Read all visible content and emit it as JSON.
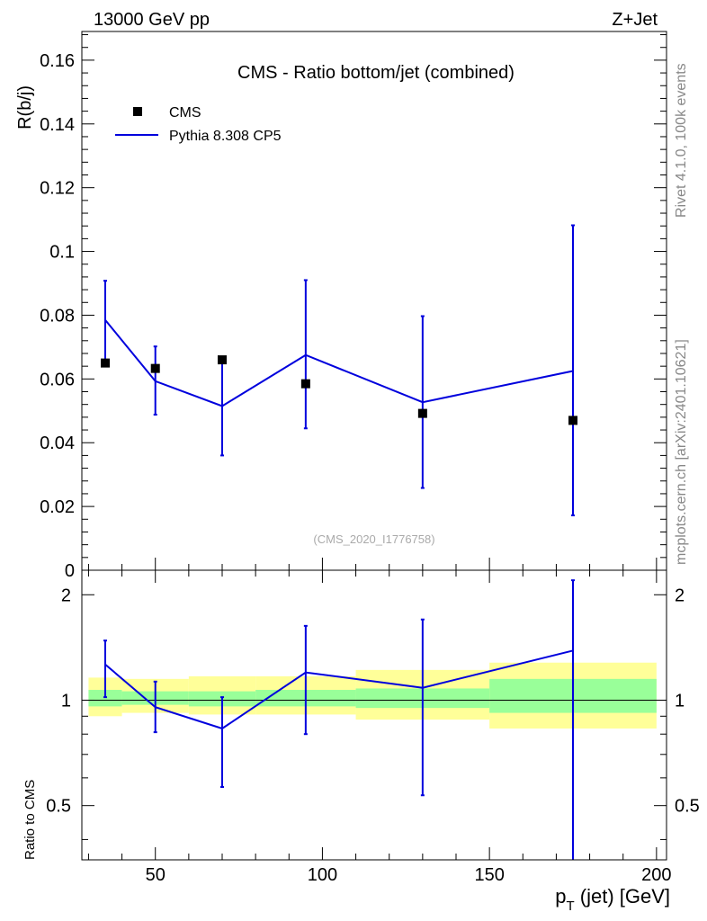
{
  "header": {
    "left": "13000 GeV pp",
    "right": "Z+Jet"
  },
  "side_text": {
    "rivet": "Rivet 4.1.0,  100k events",
    "mcplots": "mcplots.cern.ch [arXiv:2401.10621]"
  },
  "analysis_tag": "(CMS_2020_I1776758)",
  "colors": {
    "data": "#000000",
    "mc": "#0000dd",
    "band_outer": "#ffff99",
    "band_inner": "#99ff99",
    "side_text": "#888888"
  },
  "chart_data": [
    {
      "type": "scatter",
      "title": "CMS - Ratio bottom/jet (combined)",
      "xlabel": "",
      "ylabel": "R(b/j)",
      "xlim": [
        28,
        203
      ],
      "ylim": [
        0,
        0.169
      ],
      "y_ticks": [
        0,
        0.02,
        0.04,
        0.06,
        0.08,
        0.1,
        0.12,
        0.14,
        0.16
      ],
      "y_tick_labels": [
        "0",
        "0.02",
        "0.04",
        "0.06",
        "0.08",
        "0.1",
        "0.12",
        "0.14",
        "0.16"
      ],
      "legend": {
        "position": "top-left",
        "entries": [
          {
            "label": "CMS",
            "style": "marker"
          },
          {
            "label": "Pythia 8.308 CP5",
            "style": "line"
          }
        ]
      },
      "series": [
        {
          "name": "CMS",
          "x": [
            35,
            50,
            70,
            95,
            130,
            175
          ],
          "y": [
            0.065,
            0.0633,
            0.066,
            0.0585,
            0.0492,
            0.047
          ]
        },
        {
          "name": "Pythia 8.308 CP5",
          "x": [
            35,
            50,
            70,
            95,
            130,
            175
          ],
          "y": [
            0.0785,
            0.0593,
            0.0515,
            0.0675,
            0.0527,
            0.0625
          ],
          "y_err_low": [
            0.066,
            0.0488,
            0.036,
            0.0445,
            0.0258,
            0.0172
          ],
          "y_err_high": [
            0.0908,
            0.0702,
            0.0668,
            0.091,
            0.0797,
            0.1082
          ]
        }
      ]
    },
    {
      "type": "line",
      "title": "",
      "xlabel": "p_T (jet) [GeV]",
      "xlabel_main": "p",
      "xlabel_sub": "T",
      "xlabel_rest": " (jet) [GeV]",
      "ylabel": "Ratio to CMS",
      "xlim": [
        28,
        203
      ],
      "ylim": [
        0.35,
        2.35
      ],
      "y_scale": "log",
      "x_ticks": [
        50,
        100,
        150,
        200
      ],
      "x_tick_labels": [
        "50",
        "100",
        "150",
        "200"
      ],
      "y_ticks": [
        0.5,
        1,
        2
      ],
      "y_tick_labels": [
        "0.5",
        "1",
        "2"
      ],
      "reference_line": 1,
      "bands": [
        {
          "x0": 30,
          "x1": 40,
          "outer": [
            0.9,
            1.16
          ],
          "inner": [
            0.96,
            1.07
          ]
        },
        {
          "x0": 40,
          "x1": 60,
          "outer": [
            0.92,
            1.15
          ],
          "inner": [
            0.97,
            1.06
          ]
        },
        {
          "x0": 60,
          "x1": 80,
          "outer": [
            0.91,
            1.17
          ],
          "inner": [
            0.96,
            1.06
          ]
        },
        {
          "x0": 80,
          "x1": 110,
          "outer": [
            0.91,
            1.17
          ],
          "inner": [
            0.96,
            1.07
          ]
        },
        {
          "x0": 110,
          "x1": 150,
          "outer": [
            0.88,
            1.22
          ],
          "inner": [
            0.95,
            1.08
          ]
        },
        {
          "x0": 150,
          "x1": 200,
          "outer": [
            0.83,
            1.28
          ],
          "inner": [
            0.92,
            1.15
          ]
        }
      ],
      "series": [
        {
          "name": "Pythia 8.308 CP5 / CMS",
          "x": [
            35,
            50,
            70,
            95,
            130,
            175
          ],
          "y": [
            1.265,
            0.955,
            0.83,
            1.2,
            1.085,
            1.385
          ],
          "y_err_low": [
            1.02,
            0.81,
            0.565,
            0.8,
            0.535,
            0.35
          ],
          "y_err_high": [
            1.48,
            1.13,
            1.02,
            1.63,
            1.7,
            2.2
          ]
        }
      ]
    }
  ]
}
